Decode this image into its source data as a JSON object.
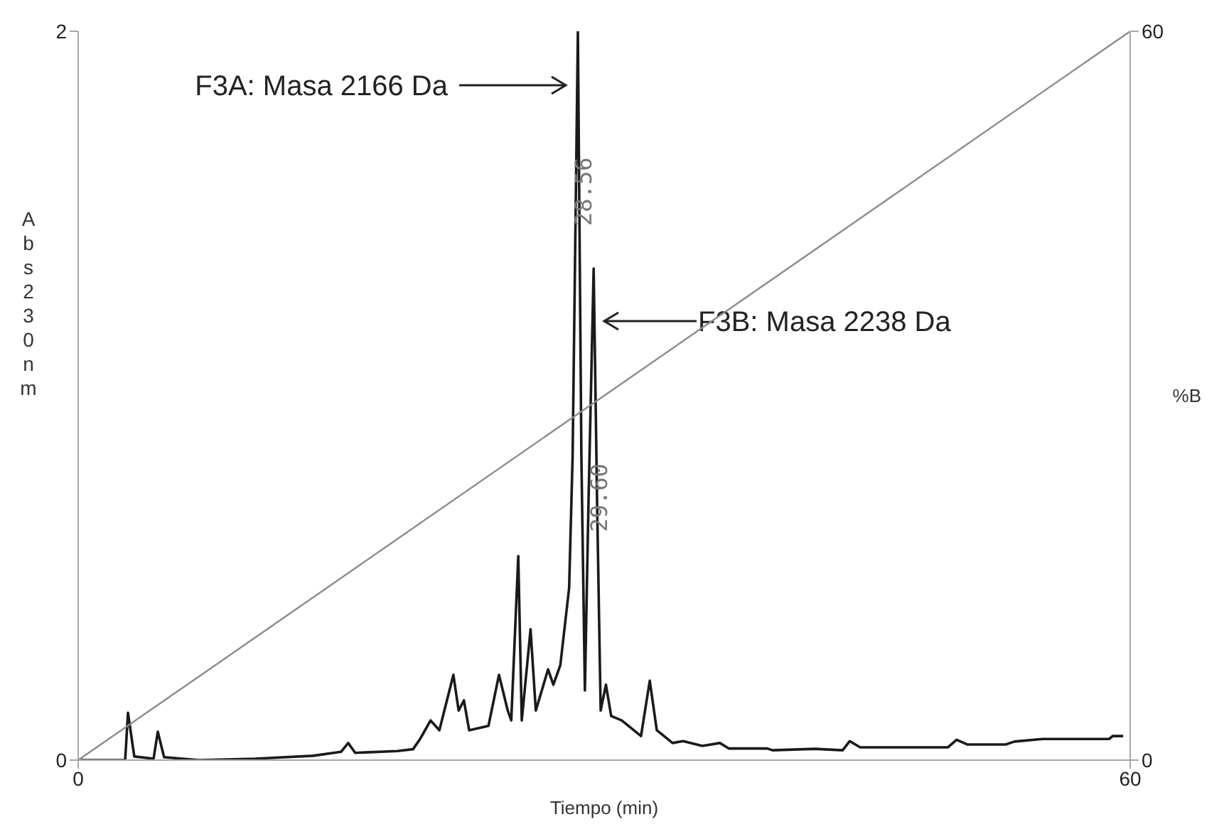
{
  "chart_data": {
    "type": "line",
    "xlabel": "Tiempo (min)",
    "ylabel": "Abs230nm",
    "y2label": "%B",
    "xlim": [
      0,
      60
    ],
    "xticks": [
      0,
      60
    ],
    "ylim": [
      0,
      2
    ],
    "yticks": [
      0,
      2
    ],
    "y2lim": [
      0,
      60
    ],
    "y2ticks": [
      0,
      60
    ],
    "series": [
      {
        "color": "#1a1a1a",
        "x": [
          0,
          2.68,
          2.84,
          3.2,
          4.3,
          4.54,
          4.9,
          6.9,
          10.1,
          13.4,
          15.0,
          15.4,
          15.8,
          18.2,
          19.1,
          19.5,
          20.1,
          20.6,
          21.4,
          21.7,
          22.0,
          22.3,
          23.4,
          24.0,
          24.5,
          24.7,
          25.1,
          25.3,
          25.8,
          26.1,
          26.8,
          27.1,
          27.5,
          28.0,
          28.2,
          28.5,
          28.7,
          28.9,
          29.1,
          29.4,
          29.6,
          29.8,
          30.1,
          30.4,
          31.0,
          32.1,
          32.6,
          33.0,
          33.9,
          34.5,
          35.6,
          36.6,
          37.1,
          39.3,
          39.6,
          42.0,
          43.6,
          44.0,
          44.6,
          49.6,
          50.1,
          50.7,
          52.9,
          53.4,
          55.0,
          58.8,
          59.0,
          59.6
        ],
        "values": [
          0,
          0,
          0.13,
          0.01,
          0.004,
          0.078,
          0.008,
          0,
          0.004,
          0.012,
          0.023,
          0.047,
          0.02,
          0.025,
          0.03,
          0.058,
          0.109,
          0.082,
          0.234,
          0.136,
          0.164,
          0.082,
          0.094,
          0.234,
          0.136,
          0.109,
          0.56,
          0.109,
          0.359,
          0.136,
          0.249,
          0.207,
          0.261,
          0.472,
          0.834,
          2.0,
          0.834,
          0.191,
          0.694,
          1.349,
          0.694,
          0.136,
          0.207,
          0.121,
          0.109,
          0.066,
          0.218,
          0.082,
          0.047,
          0.052,
          0.039,
          0.047,
          0.032,
          0.032,
          0.027,
          0.031,
          0.027,
          0.052,
          0.035,
          0.035,
          0.056,
          0.043,
          0.043,
          0.051,
          0.058,
          0.058,
          0.066,
          0.066
        ]
      },
      {
        "axis": "y2",
        "color": "#8c8c8c",
        "x": [
          0,
          60
        ],
        "values": [
          0,
          60
        ]
      }
    ],
    "annotations": [
      "F3A: Masa 2166 Da",
      "F3B: Masa 2238 Da",
      {
        "text": "28.56",
        "x": 28.8,
        "y": 1.56
      },
      {
        "text": "29.60",
        "x": 29.7,
        "y": 0.72
      }
    ]
  }
}
